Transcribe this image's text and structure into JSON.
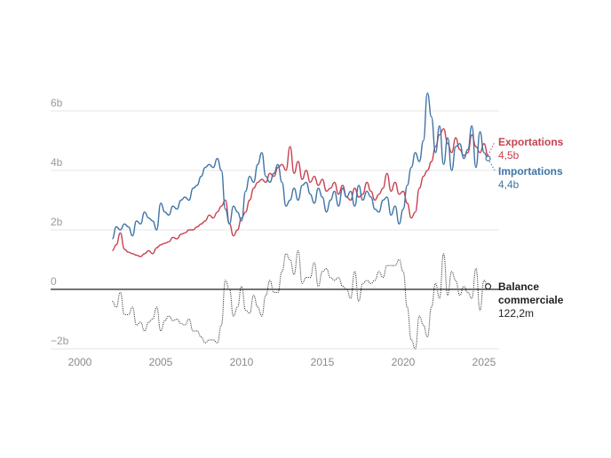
{
  "chart_data": {
    "type": "line",
    "title": "",
    "xlabel": "",
    "ylabel": "",
    "xlim": [
      1998.8,
      2025.9
    ],
    "ylim": [
      -2.2,
      6.6
    ],
    "x_ticks": [
      2000,
      2005,
      2010,
      2015,
      2020,
      2025
    ],
    "x_tick_labels": [
      "2000",
      "2005",
      "2010",
      "2015",
      "2020",
      "2025"
    ],
    "y_ticks": [
      6,
      4,
      2,
      0,
      -2
    ],
    "y_tick_labels": [
      "6b",
      "4b",
      "2b",
      "0",
      "−2b"
    ],
    "grid": true,
    "x_start": 2002.0,
    "x_step_years": 0.25,
    "series": [
      {
        "name": "Exportations",
        "label": "Exportations",
        "end_value_label": "4,5b",
        "color": "#c8414f",
        "style": "solid",
        "values": [
          1.3,
          1.5,
          1.9,
          1.35,
          1.25,
          1.2,
          1.15,
          1.1,
          1.2,
          1.3,
          1.2,
          1.4,
          1.5,
          1.55,
          1.6,
          1.75,
          1.7,
          1.85,
          1.9,
          2.0,
          2.0,
          2.1,
          2.2,
          2.3,
          2.5,
          2.4,
          2.6,
          2.8,
          3.0,
          2.2,
          1.8,
          2.0,
          2.4,
          2.6,
          3.0,
          3.4,
          3.6,
          3.7,
          3.6,
          3.9,
          3.8,
          4.1,
          4.2,
          4.0,
          4.8,
          3.9,
          4.3,
          3.7,
          4.0,
          3.6,
          3.8,
          3.5,
          3.7,
          3.3,
          3.4,
          3.6,
          3.2,
          3.5,
          3.1,
          3.0,
          3.4,
          3.1,
          3.2,
          3.6,
          3.3,
          3.0,
          3.2,
          3.4,
          3.9,
          3.3,
          3.6,
          3.2,
          3.3,
          2.9,
          2.4,
          2.6,
          3.4,
          3.8,
          4.0,
          4.3,
          4.8,
          5.2,
          5.4,
          4.9,
          4.6,
          5.1,
          4.7,
          4.5,
          4.6,
          5.2,
          4.8,
          4.6,
          4.9,
          4.5
        ]
      },
      {
        "name": "Importations",
        "label": "Importations",
        "end_value_label": "4,4b",
        "color": "#3f74a6",
        "style": "solid",
        "values": [
          1.7,
          2.1,
          2.0,
          2.2,
          2.1,
          1.8,
          2.3,
          2.2,
          2.6,
          2.4,
          2.3,
          2.0,
          2.9,
          2.6,
          2.5,
          2.8,
          2.7,
          3.0,
          3.1,
          3.0,
          3.4,
          3.5,
          3.8,
          4.1,
          4.2,
          4.1,
          4.4,
          4.0,
          2.7,
          2.2,
          2.8,
          2.6,
          2.3,
          3.3,
          3.8,
          3.6,
          4.2,
          4.6,
          3.8,
          3.6,
          3.9,
          4.2,
          3.6,
          2.8,
          3.0,
          3.4,
          3.0,
          3.5,
          3.6,
          3.2,
          2.9,
          3.4,
          3.1,
          2.6,
          3.0,
          3.3,
          2.8,
          3.4,
          3.1,
          3.3,
          2.8,
          3.5,
          3.0,
          3.3,
          3.1,
          2.7,
          2.6,
          3.0,
          3.1,
          2.5,
          2.8,
          2.2,
          2.7,
          3.5,
          4.1,
          4.6,
          4.3,
          5.0,
          6.6,
          5.8,
          4.6,
          5.5,
          4.2,
          5.1,
          4.0,
          4.8,
          4.9,
          4.4,
          4.7,
          5.5,
          4.1,
          5.3,
          4.6,
          4.4
        ]
      },
      {
        "name": "Balance commerciale",
        "label_line1": "Balance",
        "label_line2": "commerciale",
        "end_value_label": "122,2m",
        "color": "#333333",
        "style": "dotted",
        "values": [
          -0.4,
          -0.6,
          -0.1,
          -0.85,
          -0.85,
          -0.6,
          -1.2,
          -1.1,
          -1.4,
          -1.1,
          -1.0,
          -0.6,
          -1.4,
          -1.05,
          -0.9,
          -1.05,
          -1.0,
          -1.15,
          -1.2,
          -1.0,
          -1.4,
          -1.4,
          -1.6,
          -1.8,
          -1.7,
          -1.7,
          -1.8,
          -1.2,
          0.3,
          0.0,
          -0.9,
          -0.6,
          0.1,
          -0.7,
          -0.8,
          -0.2,
          -0.6,
          -0.9,
          -0.2,
          0.3,
          -0.1,
          -0.1,
          0.6,
          1.2,
          1.0,
          0.5,
          1.3,
          0.2,
          0.4,
          0.4,
          0.9,
          0.1,
          0.6,
          0.7,
          0.4,
          0.3,
          0.4,
          0.1,
          0.0,
          -0.3,
          0.6,
          -0.4,
          0.2,
          0.3,
          0.2,
          0.3,
          0.6,
          0.4,
          0.8,
          0.8,
          0.8,
          1.0,
          0.6,
          -0.6,
          -1.7,
          -2.0,
          -0.9,
          -1.2,
          -1.6,
          -0.6,
          0.2,
          -0.3,
          1.2,
          -0.2,
          0.6,
          0.3,
          -0.2,
          0.1,
          -0.1,
          -0.3,
          0.7,
          -0.7,
          0.3,
          0.1
        ]
      }
    ],
    "zero_line": true
  }
}
